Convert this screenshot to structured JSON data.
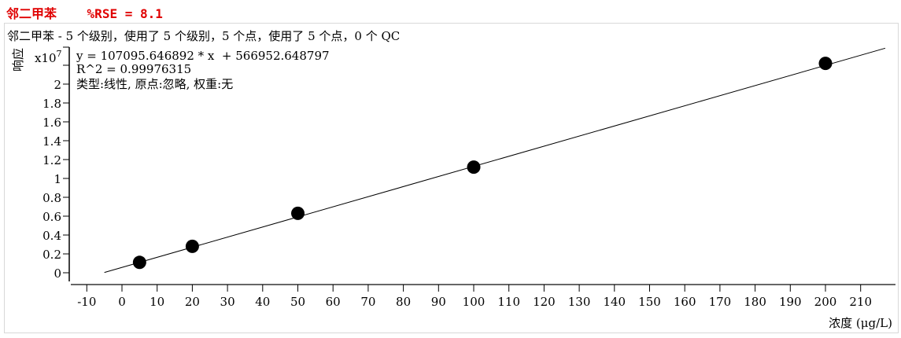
{
  "header": {
    "compound": "邻二甲苯",
    "rse": "%RSE = 8.1"
  },
  "chart_data": {
    "type": "scatter",
    "title": "邻二甲苯 - 5 个级别，使用了 5 个级别，5 个点，使用了 5 个点，0 个 QC",
    "equation": "y = 107095.646892 * x  + 566952.648797",
    "r2": "R^2 = 0.99976315",
    "fit_info": "类型:线性, 原点:忽略, 权重:无",
    "xlabel": "浓度 (μg/L)",
    "ylabel": "响应",
    "y_multiplier": "x10",
    "y_exponent": "7",
    "xlim": [
      -12,
      218
    ],
    "ylim": [
      -0.08,
      2.4
    ],
    "x_ticks": [
      -10,
      0,
      10,
      20,
      30,
      40,
      50,
      60,
      70,
      80,
      90,
      100,
      110,
      120,
      130,
      140,
      150,
      160,
      170,
      180,
      190,
      200,
      210
    ],
    "y_ticks": [
      0,
      0.2,
      0.4,
      0.6,
      0.8,
      1,
      1.2,
      1.4,
      1.6,
      1.8,
      2
    ],
    "y_tick_labels": [
      "0",
      "0.2",
      "0.4",
      "0.6",
      "0.8",
      "1",
      "1.2",
      "1.4",
      "1.6",
      "1.8",
      "2"
    ],
    "points": {
      "x": [
        5,
        20,
        50,
        100,
        200
      ],
      "y": [
        0.11,
        0.28,
        0.63,
        1.12,
        2.22
      ]
    },
    "fit_line": {
      "slope": 107095.646892,
      "intercept": 566952.648797,
      "x_range": [
        -5,
        217
      ]
    },
    "colors": {
      "points": "#000000",
      "line": "#000000",
      "title": "#e00000"
    }
  }
}
